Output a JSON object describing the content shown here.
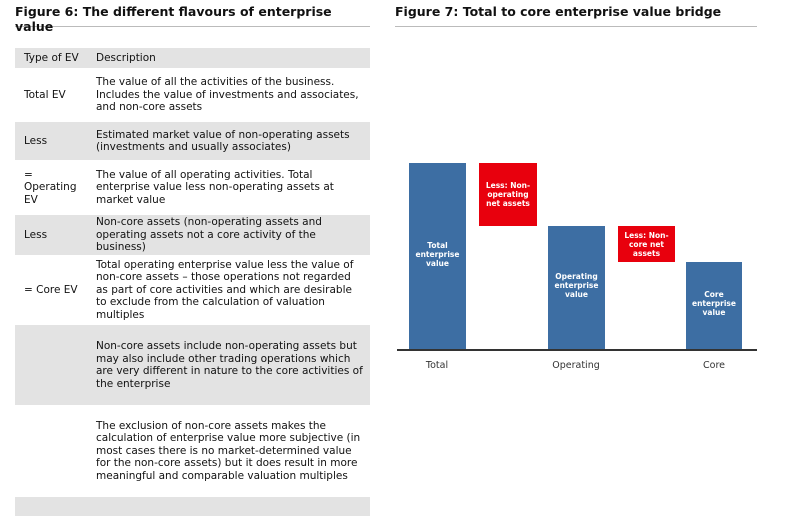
{
  "figure6": {
    "title": "Figure 6: The different flavours of enterprise value",
    "table": {
      "header": [
        "Type of EV",
        "Description"
      ],
      "rows": [
        [
          "Total EV",
          "The value of all the activities of the business. Includes the value of investments and associates, and non-core assets"
        ],
        [
          "Less",
          "Estimated market value of non-operating assets (investments and usually associates)"
        ],
        [
          "= Operating EV",
          "The value of all operating activities. Total enterprise value less non-operating assets at market value"
        ],
        [
          "Less",
          "Non-core assets (non-operating assets and operating assets not a core activity of the business)"
        ],
        [
          "= Core EV",
          "Total operating enterprise value less the value of non-core assets – those operations not regarded as part of core activities and which are desirable to exclude from the calculation of valuation multiples"
        ],
        [
          null,
          "Non-core assets include non-operating assets but may also include other trading operations which are very different in nature to the core activities of the enterprise"
        ],
        [
          null,
          "The exclusion of non-core assets makes the calculation of enterprise value more subjective (in most cases there is no market-determined value for the non-core assets) but it does result in more meaningful and comparable valuation multiples"
        ]
      ]
    }
  },
  "figure7": {
    "title": "Figure 7: Total to core enterprise value bridge",
    "boxes": [
      "Total enterprise value",
      "Less: Non-operating net assets",
      "Operating enterprise value",
      "Less: Non-core net assets",
      "Core enterprise value"
    ],
    "x_labels": [
      "Total",
      "Operating",
      "Core"
    ]
  }
}
